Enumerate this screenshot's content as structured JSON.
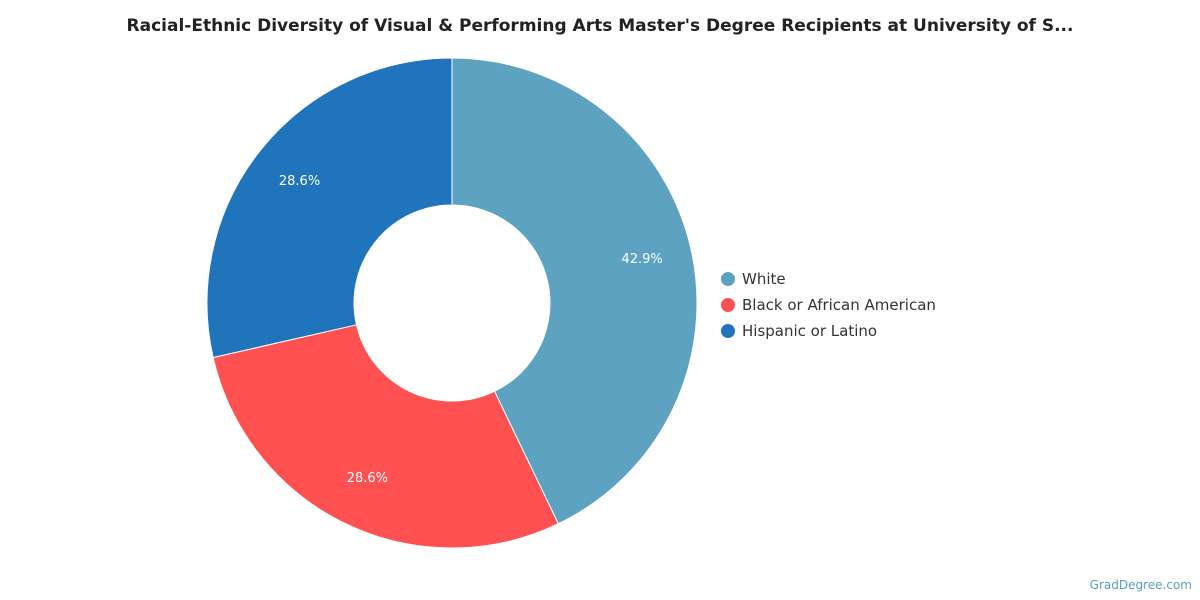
{
  "chart_data": {
    "type": "pie",
    "title": "Racial-Ethnic Diversity of Visual & Performing Arts Master's Degree Recipients at University of S...",
    "donut": true,
    "legend_position": "right",
    "slices": [
      {
        "label": "White",
        "value": 42.9,
        "display": "42.9%",
        "color": "#5da2c1"
      },
      {
        "label": "Black or African American",
        "value": 28.6,
        "display": "28.6%",
        "color": "#ff5152"
      },
      {
        "label": "Hispanic or Latino",
        "value": 28.6,
        "display": "28.6%",
        "color": "#1f74bb"
      }
    ]
  },
  "legend": {
    "items": [
      {
        "label": "White",
        "color": "#5da2c1"
      },
      {
        "label": "Black or African American",
        "color": "#ff5152"
      },
      {
        "label": "Hispanic or Latino",
        "color": "#1f74bb"
      }
    ]
  },
  "watermark": "GradDegree.com"
}
